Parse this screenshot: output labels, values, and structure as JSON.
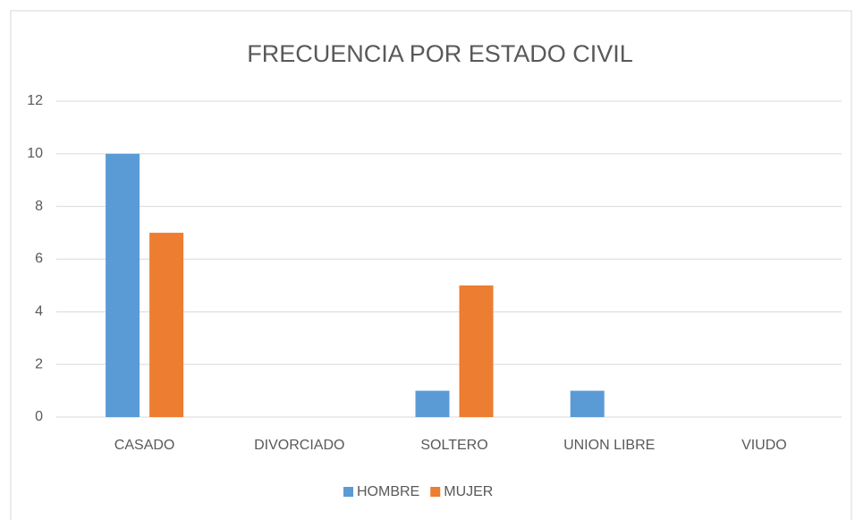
{
  "chart_data": {
    "type": "bar",
    "title": "FRECUENCIA POR ESTADO CIVIL",
    "categories": [
      "CASADO",
      "DIVORCIADO",
      "SOLTERO",
      "UNION LIBRE",
      "VIUDO"
    ],
    "series": [
      {
        "name": "HOMBRE",
        "color": "#5b9bd5",
        "values": [
          10,
          0,
          1,
          1,
          0
        ]
      },
      {
        "name": "MUJER",
        "color": "#ed7d31",
        "values": [
          7,
          0,
          5,
          0,
          0
        ]
      }
    ],
    "ylim": [
      0,
      12
    ],
    "yticks": [
      0,
      2,
      4,
      6,
      8,
      10,
      12
    ],
    "grid": true,
    "legend": "bottom"
  }
}
